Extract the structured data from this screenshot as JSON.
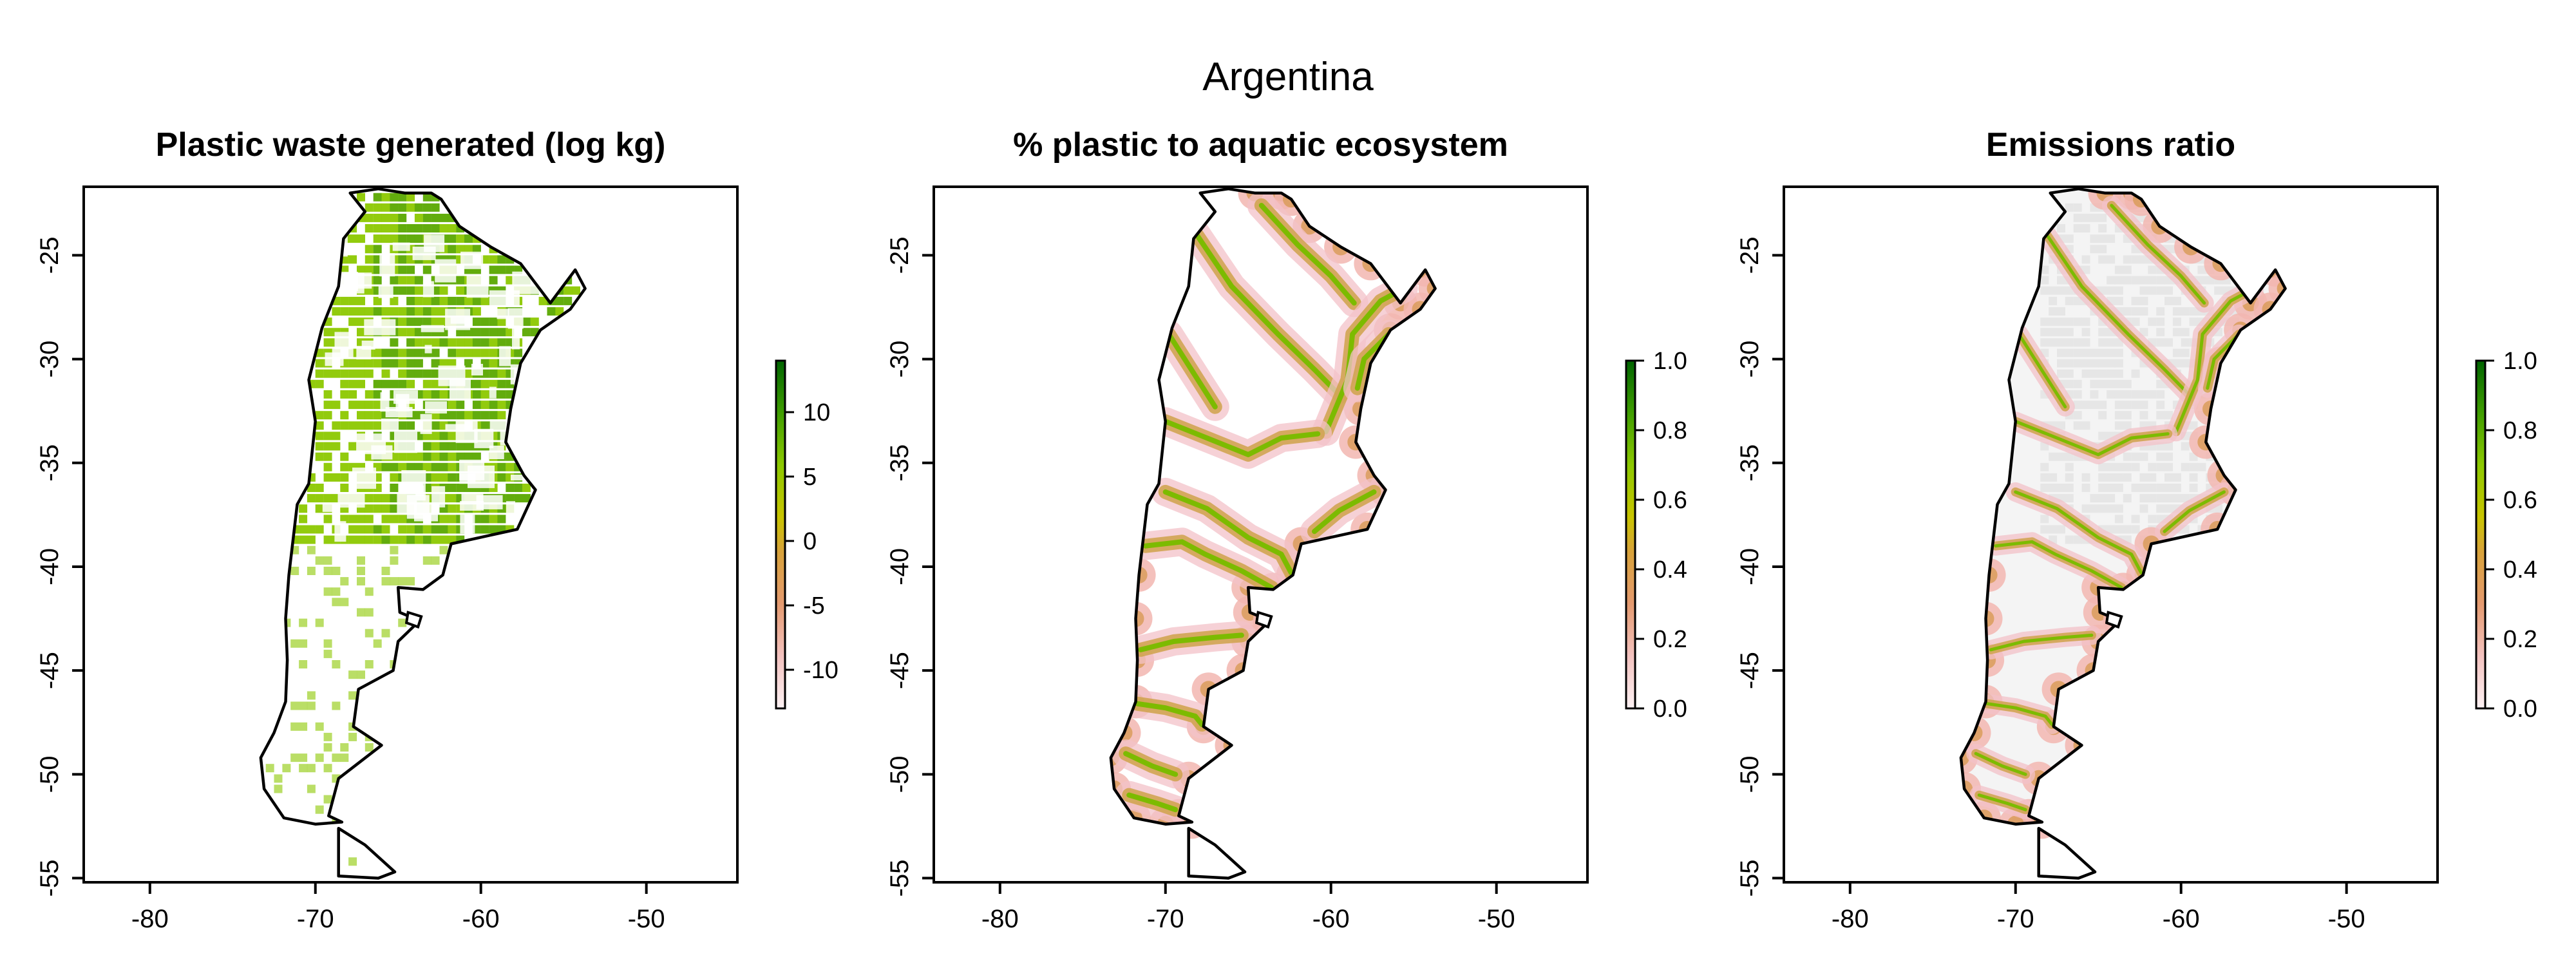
{
  "figure": {
    "title": "Argentina"
  },
  "panels": [
    {
      "title": "Plastic waste generated (log kg)",
      "legend": {
        "ticks": [
          "10",
          "5",
          "0",
          "-5",
          "-10"
        ],
        "tick_values": [
          10,
          5,
          0,
          -5,
          -10
        ],
        "range": [
          -13,
          14
        ]
      },
      "fill_style": "dense-green-urban"
    },
    {
      "title": "% plastic to aquatic ecosystem",
      "legend": {
        "ticks": [
          "1.0",
          "0.8",
          "0.6",
          "0.4",
          "0.2",
          "0.0"
        ],
        "tick_values": [
          1.0,
          0.8,
          0.6,
          0.4,
          0.2,
          0.0
        ],
        "range": [
          0,
          1
        ]
      },
      "fill_style": "river-network"
    },
    {
      "title": "Emissions ratio",
      "legend": {
        "ticks": [
          "1.0",
          "0.8",
          "0.6",
          "0.4",
          "0.2",
          "0.0"
        ],
        "tick_values": [
          1.0,
          0.8,
          0.6,
          0.4,
          0.2,
          0.0
        ],
        "range": [
          0,
          1
        ]
      },
      "fill_style": "grey-with-rivers"
    }
  ],
  "axes": {
    "x_ticks": [
      "-80",
      "-70",
      "-60",
      "-50"
    ],
    "x_values": [
      -80,
      -70,
      -60,
      -50
    ],
    "y_ticks": [
      "-25",
      "-30",
      "-35",
      "-40",
      "-45",
      "-50",
      "-55"
    ],
    "y_values": [
      -25,
      -30,
      -35,
      -40,
      -45,
      -50,
      -55
    ],
    "xlim": [
      -84,
      -44.5
    ],
    "ylim": [
      -55.2,
      -21.7
    ]
  },
  "colors": {
    "scale": [
      "#fdf2f4",
      "#f3c2bf",
      "#e49a70",
      "#d8a23a",
      "#c8c400",
      "#8cc800",
      "#3f9d00",
      "#006400"
    ],
    "frame": "#000000",
    "land_grey": "#ebebeb"
  }
}
